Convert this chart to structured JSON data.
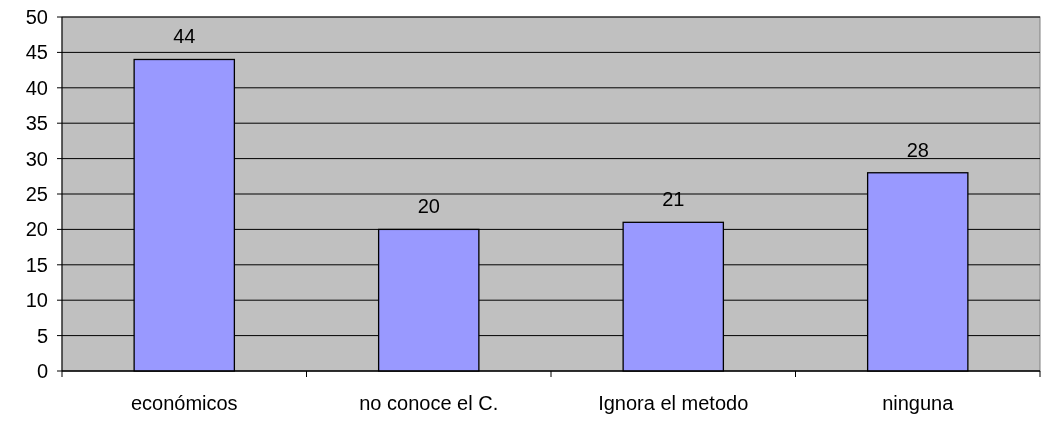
{
  "chart_data": {
    "type": "bar",
    "categories": [
      "económicos",
      "no conoce el C.",
      "Ignora el metodo",
      "ninguna"
    ],
    "values": [
      44,
      20,
      21,
      28
    ],
    "color": "#9999ff",
    "ylim": [
      0,
      50
    ],
    "yticks": [
      0,
      5,
      10,
      15,
      20,
      25,
      30,
      35,
      40,
      45,
      50
    ],
    "grid": "y",
    "data_labels": true
  }
}
